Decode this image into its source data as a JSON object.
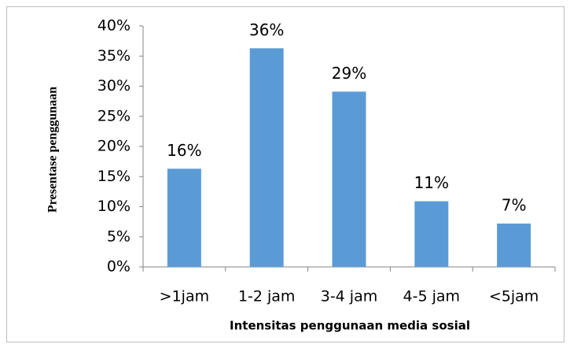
{
  "chart_data": {
    "type": "bar",
    "x_label": "Intensitas penggunaan media sosial",
    "y_label": "Presentase  penggunaan",
    "categories": [
      ">1jam",
      "1-2 jam",
      "3-4 jam",
      "4-5 jam",
      "<5jam"
    ],
    "values": [
      16.3,
      36.3,
      29.1,
      10.9,
      7.2
    ],
    "value_labels": [
      "16%",
      "36%",
      "29%",
      "11%",
      "7%"
    ],
    "color": "#5b9bd5",
    "ylim": [
      0,
      40
    ],
    "yticks": [
      {
        "value": 0,
        "label": "0%"
      },
      {
        "value": 5,
        "label": "5%"
      },
      {
        "value": 10,
        "label": "10%"
      },
      {
        "value": 15,
        "label": "15%"
      },
      {
        "value": 20,
        "label": "20%"
      },
      {
        "value": 25,
        "label": "25%"
      },
      {
        "value": 30,
        "label": "30%"
      },
      {
        "value": 35,
        "label": "35%"
      },
      {
        "value": 40,
        "label": "40%"
      }
    ],
    "grid": false
  }
}
